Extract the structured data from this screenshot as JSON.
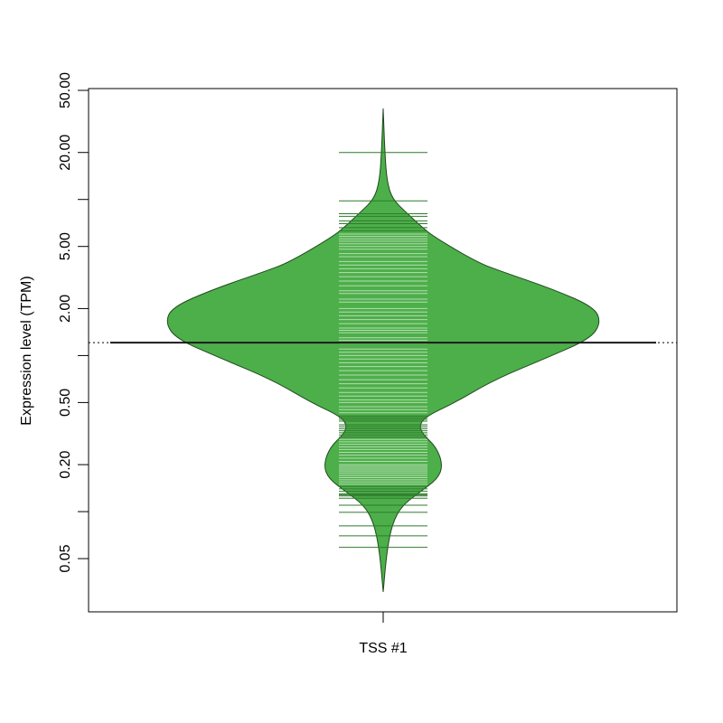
{
  "chart_data": {
    "type": "beanplot",
    "title": "",
    "xlabel": "",
    "ylabel": "Expression level (TPM)",
    "y_scale": "log",
    "ylim": [
      0.025,
      50
    ],
    "y_ticks": [
      50,
      20,
      10,
      5,
      2,
      1,
      0.5,
      0.2,
      0.1,
      0.05
    ],
    "y_tick_labels": [
      "50.00",
      "20.00",
      "",
      "5.00",
      "2.00",
      "",
      "0.50",
      "0.20",
      "",
      "0.05"
    ],
    "categories": [
      "TSS #1"
    ],
    "grid": false,
    "colors": {
      "fill": "#4daf4a",
      "outline": "#1e4a1c",
      "beanline_inside": "#b5ddb2",
      "beanline_outside": "#2f7a2c",
      "mean": "#000000"
    },
    "series": [
      {
        "category": "TSS #1",
        "mean": 1.21,
        "overall_mean": 1.21,
        "density": [
          [
            38.3,
            0
          ],
          [
            19.7,
            0.008
          ],
          [
            13.2,
            0.017
          ],
          [
            10.1,
            0.041
          ],
          [
            8.3,
            0.104
          ],
          [
            6.8,
            0.17
          ],
          [
            5.8,
            0.23
          ],
          [
            3.97,
            0.43
          ],
          [
            3.47,
            0.54
          ],
          [
            2.66,
            0.78
          ],
          [
            2.04,
            0.97
          ],
          [
            1.62,
            1.0
          ],
          [
            1.28,
            0.95
          ],
          [
            0.98,
            0.76
          ],
          [
            0.7,
            0.51
          ],
          [
            0.5,
            0.33
          ],
          [
            0.41,
            0.2
          ],
          [
            0.36,
            0.166
          ],
          [
            0.315,
            0.18
          ],
          [
            0.258,
            0.245
          ],
          [
            0.198,
            0.274
          ],
          [
            0.162,
            0.25
          ],
          [
            0.133,
            0.166
          ],
          [
            0.108,
            0.083
          ],
          [
            0.083,
            0.041
          ],
          [
            0.056,
            0.017
          ],
          [
            0.0306,
            0
          ]
        ],
        "observations": [
          20.0,
          9.8,
          8.1,
          7.8,
          7.3,
          7.0,
          6.6,
          6.3,
          6.0,
          5.8,
          5.6,
          5.4,
          5.2,
          5.0,
          4.8,
          4.5,
          4.3,
          4.0,
          3.8,
          3.6,
          3.4,
          3.2,
          3.0,
          2.8,
          2.6,
          2.5,
          2.3,
          2.2,
          2.0,
          1.9,
          1.8,
          1.7,
          1.6,
          1.5,
          1.45,
          1.4,
          1.3,
          1.25,
          1.2,
          1.1,
          1.05,
          1.0,
          0.95,
          0.9,
          0.85,
          0.8,
          0.75,
          0.7,
          0.66,
          0.62,
          0.58,
          0.55,
          0.52,
          0.5,
          0.47,
          0.45,
          0.43,
          0.41,
          0.4,
          0.39,
          0.38,
          0.36,
          0.35,
          0.34,
          0.33,
          0.32,
          0.31,
          0.3,
          0.29,
          0.28,
          0.27,
          0.26,
          0.25,
          0.24,
          0.23,
          0.22,
          0.21,
          0.2,
          0.195,
          0.19,
          0.185,
          0.18,
          0.175,
          0.17,
          0.165,
          0.16,
          0.155,
          0.15,
          0.145,
          0.14,
          0.135,
          0.13,
          0.128,
          0.126,
          0.122,
          0.11,
          0.099,
          0.081,
          0.07,
          0.059
        ]
      }
    ]
  }
}
